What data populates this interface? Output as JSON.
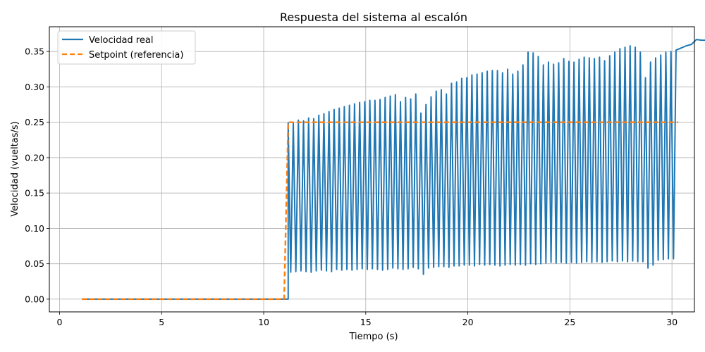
{
  "chart_data": {
    "type": "line",
    "title": "Respuesta del sistema al escalón",
    "xlabel": "Tiempo (s)",
    "ylabel": "Velocidad (vueltas/s)",
    "xlim": [
      -0.5,
      31.1
    ],
    "ylim": [
      -0.018,
      0.385
    ],
    "xticks": [
      0,
      5,
      10,
      15,
      20,
      25,
      30
    ],
    "yticks": [
      0.0,
      0.05,
      0.1,
      0.15,
      0.2,
      0.25,
      0.3,
      0.35
    ],
    "ytick_labels": [
      "0.00",
      "0.05",
      "0.10",
      "0.15",
      "0.20",
      "0.25",
      "0.30",
      "0.35"
    ],
    "grid": true,
    "legend_position": "top-left",
    "series": [
      {
        "name": "Velocidad real",
        "color": "#1f77b4",
        "style": "solid",
        "x_start": 1.1,
        "step_time": 11.2,
        "x_end": 30.3,
        "baseline_before_step": 0.0,
        "oscillation_period": 0.25,
        "peaks": [
          0.249,
          0.249,
          0.253,
          0.252,
          0.256,
          0.255,
          0.26,
          0.262,
          0.265,
          0.268,
          0.27,
          0.272,
          0.274,
          0.276,
          0.278,
          0.279,
          0.281,
          0.281,
          0.282,
          0.285,
          0.287,
          0.289,
          0.279,
          0.285,
          0.283,
          0.29,
          0.263,
          0.275,
          0.286,
          0.294,
          0.296,
          0.29,
          0.305,
          0.307,
          0.312,
          0.313,
          0.317,
          0.318,
          0.32,
          0.322,
          0.323,
          0.323,
          0.32,
          0.325,
          0.318,
          0.322,
          0.331,
          0.349,
          0.348,
          0.343,
          0.331,
          0.335,
          0.332,
          0.334,
          0.34,
          0.336,
          0.335,
          0.339,
          0.342,
          0.341,
          0.34,
          0.342,
          0.337,
          0.344,
          0.349,
          0.354,
          0.356,
          0.358,
          0.356,
          0.349,
          0.313,
          0.335,
          0.341,
          0.345,
          0.349,
          0.35,
          0.352,
          0.355,
          0.358,
          0.36,
          0.367,
          0.366,
          0.366,
          0.367,
          0.366,
          0.365,
          0.361
        ],
        "troughs": [
          0.038,
          0.039,
          0.04,
          0.039,
          0.038,
          0.04,
          0.041,
          0.04,
          0.039,
          0.042,
          0.041,
          0.042,
          0.041,
          0.042,
          0.043,
          0.042,
          0.043,
          0.042,
          0.041,
          0.042,
          0.044,
          0.043,
          0.042,
          0.043,
          0.045,
          0.043,
          0.035,
          0.044,
          0.045,
          0.046,
          0.046,
          0.045,
          0.047,
          0.047,
          0.048,
          0.048,
          0.047,
          0.049,
          0.048,
          0.049,
          0.048,
          0.047,
          0.048,
          0.049,
          0.048,
          0.049,
          0.048,
          0.05,
          0.049,
          0.05,
          0.051,
          0.052,
          0.051,
          0.052,
          0.051,
          0.052,
          0.051,
          0.052,
          0.053,
          0.052,
          0.053,
          0.052,
          0.053,
          0.054,
          0.053,
          0.054,
          0.053,
          0.054,
          0.053,
          0.053,
          0.044,
          0.048,
          0.055,
          0.056,
          0.057,
          0.057,
          0.058,
          0.057,
          0.058,
          0.059,
          0.059,
          0.06,
          0.06,
          0.06,
          0.061,
          0.061,
          0.062
        ]
      },
      {
        "name": "Setpoint (referencia)",
        "color": "#ff7f0e",
        "style": "dashed",
        "x": [
          1.1,
          11.0,
          11.2,
          30.3
        ],
        "y": [
          0.0,
          0.0,
          0.25,
          0.25
        ]
      }
    ]
  }
}
